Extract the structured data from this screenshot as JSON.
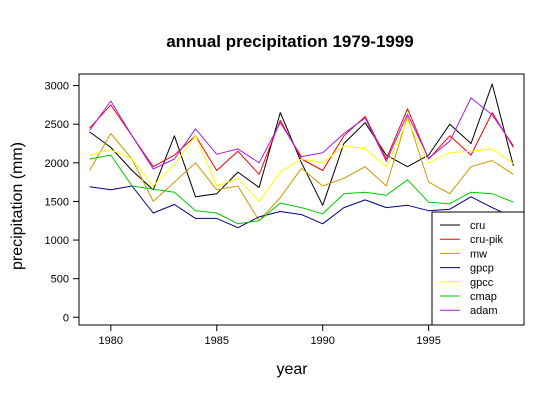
{
  "chart_data": {
    "type": "line",
    "title": "annual precipitation 1979-1999",
    "xlabel": "year",
    "ylabel": "precipitation (mm)",
    "xlim": [
      1978.5,
      1999.5
    ],
    "ylim": [
      -100,
      3150
    ],
    "x_ticks": [
      1980,
      1985,
      1990,
      1995
    ],
    "y_ticks": [
      0,
      500,
      1000,
      1500,
      2000,
      2500,
      3000
    ],
    "legend_position": "bottom-right",
    "x": [
      1979,
      1980,
      1981,
      1982,
      1983,
      1984,
      1985,
      1986,
      1987,
      1988,
      1989,
      1990,
      1991,
      1992,
      1993,
      1994,
      1995,
      1996,
      1997,
      1998,
      1999
    ],
    "series": [
      {
        "name": "cru",
        "color": "#000000",
        "values": [
          2400,
          2200,
          1900,
          1650,
          2350,
          1560,
          1600,
          1880,
          1680,
          2650,
          2000,
          1450,
          2250,
          2520,
          2100,
          1950,
          2100,
          2500,
          2250,
          3020,
          1960
        ]
      },
      {
        "name": "cru-pik",
        "color": "#ff0000",
        "values": [
          2450,
          2750,
          2350,
          1950,
          2100,
          2350,
          1900,
          2150,
          1850,
          2550,
          2050,
          1900,
          2350,
          2600,
          2050,
          2700,
          2050,
          2350,
          2100,
          2650,
          2200
        ]
      },
      {
        "name": "mw",
        "color": "#cc9900",
        "values": [
          1900,
          2380,
          2050,
          1500,
          1750,
          2000,
          1650,
          1700,
          1250,
          1550,
          1930,
          1700,
          1800,
          1950,
          1700,
          2600,
          1750,
          1600,
          1950,
          2030,
          1850
        ]
      },
      {
        "name": "gpcp",
        "color": "#000080",
        "values": [
          1690,
          1650,
          1700,
          1350,
          1460,
          1280,
          1280,
          1160,
          1300,
          1370,
          1330,
          1210,
          1420,
          1520,
          1420,
          1450,
          1380,
          1400,
          1560,
          1420,
          1290
        ]
      },
      {
        "name": "gpcc",
        "color": "#ffff00",
        "values": [
          2100,
          2170,
          2050,
          1700,
          1980,
          2350,
          1700,
          1800,
          1500,
          1880,
          2050,
          2000,
          2220,
          2180,
          1950,
          2550,
          2000,
          2130,
          2150,
          2180,
          1990
        ]
      },
      {
        "name": "cmap",
        "color": "#00cc00",
        "values": [
          2050,
          2100,
          1700,
          1660,
          1620,
          1380,
          1350,
          1210,
          1250,
          1480,
          1420,
          1340,
          1600,
          1620,
          1580,
          1780,
          1490,
          1470,
          1620,
          1600,
          1490
        ]
      },
      {
        "name": "adam",
        "color": "#a020f0",
        "values": [
          2420,
          2800,
          2350,
          1920,
          2050,
          2440,
          2110,
          2180,
          2000,
          2520,
          2080,
          2130,
          2380,
          2580,
          2020,
          2630,
          2060,
          2280,
          2840,
          2620,
          2220
        ]
      }
    ]
  }
}
